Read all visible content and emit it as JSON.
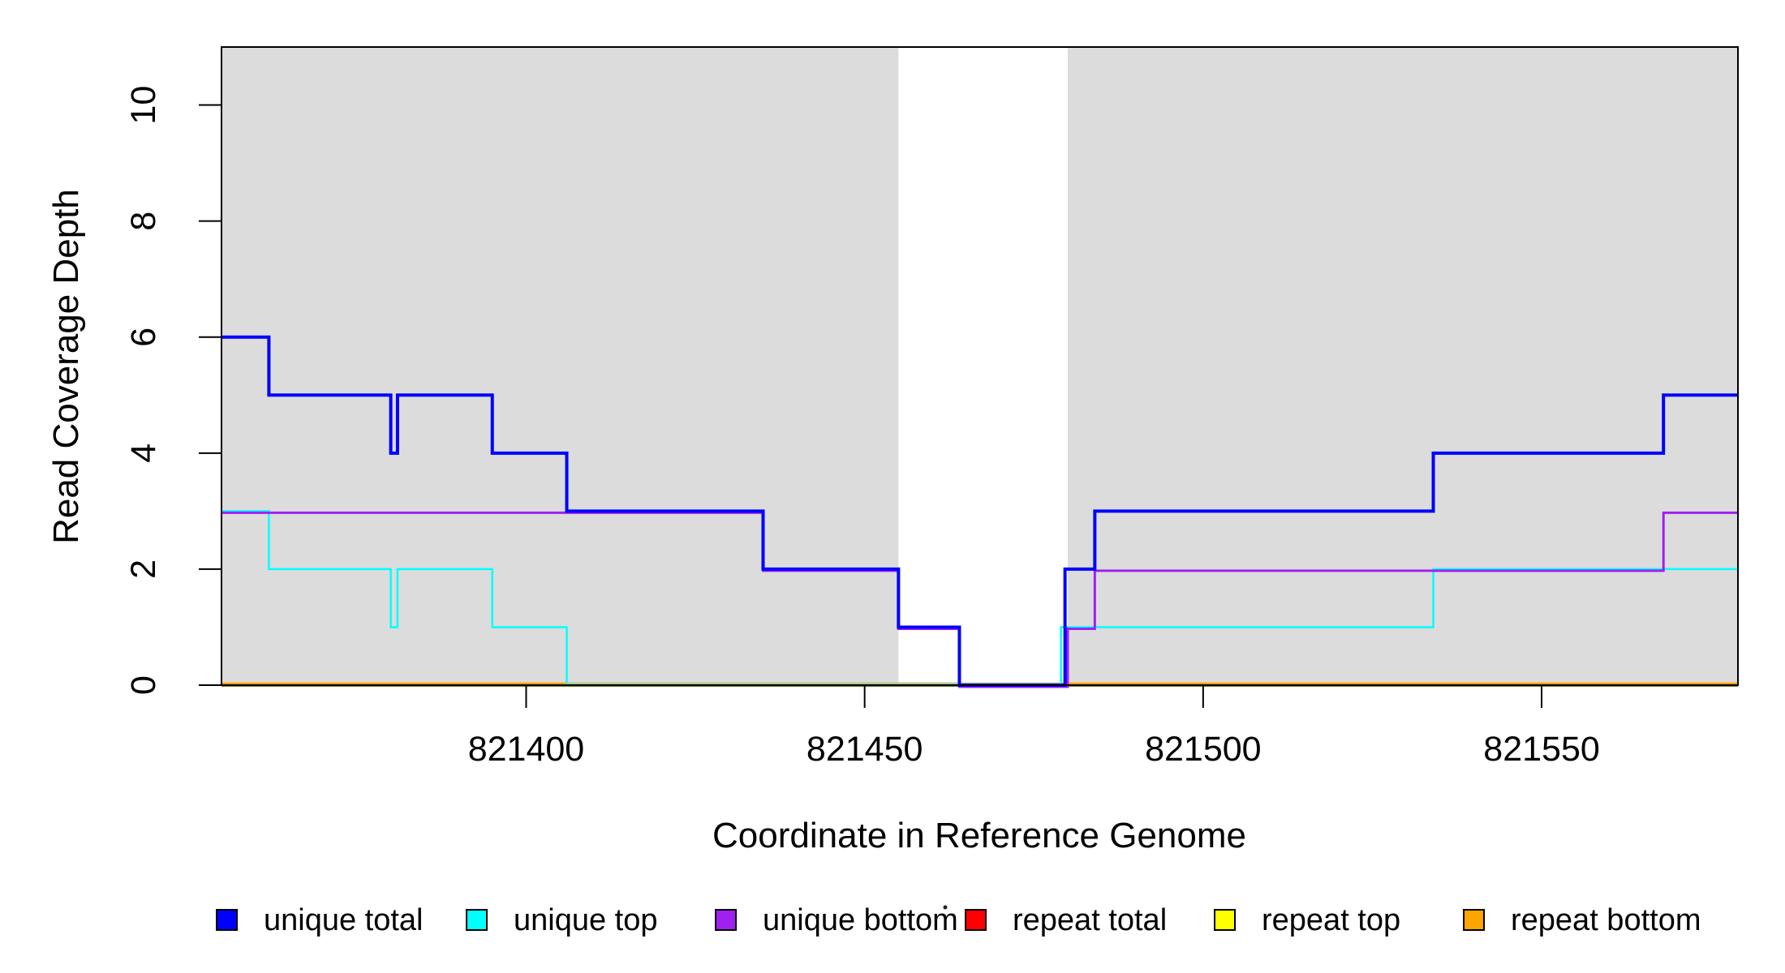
{
  "figure": {
    "background": "#ffffff",
    "plot_background_gray": "#DCDCDC"
  },
  "chart_data": {
    "type": "line",
    "subtype": "step-coverage",
    "title": "",
    "xlabel": "Coordinate in Reference Genome",
    "ylabel": "Read Coverage Depth",
    "xlim": [
      821355,
      821579
    ],
    "ylim": [
      0,
      11
    ],
    "x_ticks": [
      821400,
      821450,
      821500,
      821550
    ],
    "y_ticks": [
      0,
      2,
      4,
      6,
      8,
      10
    ],
    "grid": false,
    "legend_position": "bottom",
    "shaded_regions": [
      {
        "x0": 821355,
        "x1": 821455,
        "color": "#DCDCDC"
      },
      {
        "x0": 821480,
        "x1": 821579,
        "color": "#DCDCDC"
      }
    ],
    "series": [
      {
        "name": "unique total",
        "color": "#0000FF",
        "width": 4,
        "steps": [
          [
            821355,
            6
          ],
          [
            821362,
            5
          ],
          [
            821380,
            4
          ],
          [
            821381,
            5
          ],
          [
            821395,
            4
          ],
          [
            821406,
            3
          ],
          [
            821435,
            2
          ],
          [
            821455,
            1
          ],
          [
            821464,
            0
          ],
          [
            821479.6,
            2
          ],
          [
            821484,
            3
          ],
          [
            821534,
            4
          ],
          [
            821568,
            5
          ],
          [
            821579,
            5
          ]
        ]
      },
      {
        "name": "unique top",
        "color": "#00FFFF",
        "width": 2.5,
        "steps": [
          [
            821355,
            3
          ],
          [
            821362,
            2
          ],
          [
            821380,
            1
          ],
          [
            821381,
            2
          ],
          [
            821395,
            1
          ],
          [
            821406,
            0
          ],
          [
            821479,
            1
          ],
          [
            821534,
            2
          ],
          [
            821579,
            2
          ]
        ]
      },
      {
        "name": "unique bottom",
        "color": "#A020F0",
        "width": 3,
        "steps": [
          [
            821355,
            3
          ],
          [
            821435,
            2
          ],
          [
            821455,
            1
          ],
          [
            821464,
            0
          ],
          [
            821480,
            1
          ],
          [
            821484,
            2
          ],
          [
            821568,
            3
          ],
          [
            821579,
            3
          ]
        ]
      },
      {
        "name": "repeat total",
        "color": "#FF0000",
        "width": 2.5,
        "steps": [
          [
            821355,
            0
          ],
          [
            821579,
            0
          ]
        ]
      },
      {
        "name": "repeat top",
        "color": "#FFFF00",
        "width": 2.5,
        "steps": [
          [
            821355,
            0
          ],
          [
            821579,
            0
          ]
        ]
      },
      {
        "name": "repeat bottom",
        "color": "#FFA500",
        "width": 2.8,
        "steps": [
          [
            821355,
            0
          ],
          [
            821579,
            0
          ]
        ]
      }
    ],
    "baseline_blend": {
      "olive_line": {
        "x0": 821355,
        "x1": 821579,
        "color": "#6B7A33"
      },
      "green_segment": {
        "x0": 821406,
        "x1": 821479,
        "color": "#A9C795"
      },
      "orange_color": "#FF9F00"
    }
  },
  "legend": {
    "entries": [
      {
        "label": "unique total",
        "color": "#0000FF"
      },
      {
        "label": "unique top",
        "color": "#00FFFF"
      },
      {
        "label": "unique bottom",
        "color": "#A020F0"
      },
      {
        "label": "repeat total",
        "color": "#FF0000"
      },
      {
        "label": "repeat top",
        "color": "#FFFF00"
      },
      {
        "label": "repeat bottom",
        "color": "#FFA500"
      }
    ]
  }
}
